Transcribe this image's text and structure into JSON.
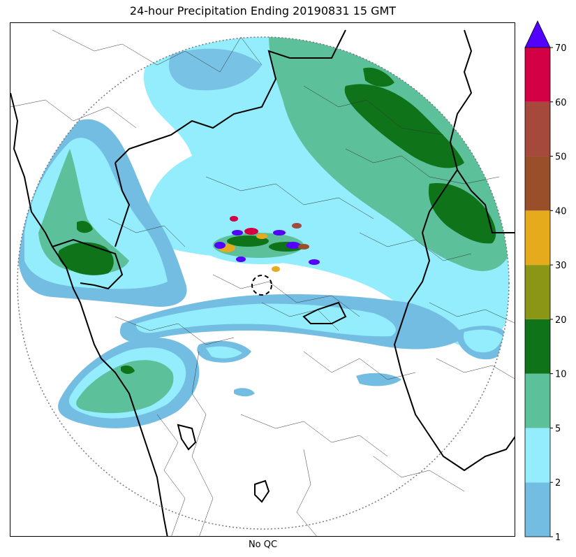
{
  "title": "24-hour Precipitation Ending 20190831 15 GMT",
  "bottom_label": "No QC",
  "colorbar": {
    "levels": [
      1,
      2,
      5,
      10,
      20,
      30,
      40,
      50,
      60,
      70
    ],
    "tick_labels": [
      "1",
      "2",
      "5",
      "10",
      "20",
      "30",
      "40",
      "50",
      "60",
      "70"
    ],
    "colors": [
      "#74bde2",
      "#93edfd",
      "#5cc19a",
      "#0f7419",
      "#8c9616",
      "#e6ab1c",
      "#99502a",
      "#a5493d",
      "#d40045"
    ],
    "extend_max_color": "#5400ff"
  },
  "map": {
    "background": "#ffffff",
    "radar_range_ring": "dotted",
    "radar_site_marker": "dashed-circle"
  }
}
